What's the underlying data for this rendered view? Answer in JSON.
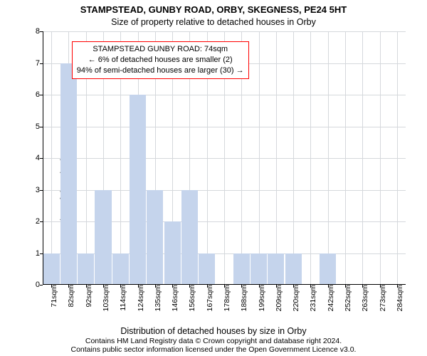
{
  "title": "STAMPSTEAD, GUNBY ROAD, ORBY, SKEGNESS, PE24 5HT",
  "subtitle": "Size of property relative to detached houses in Orby",
  "ylabel": "Number of detached properties",
  "xlabel": "Distribution of detached houses by size in Orby",
  "caption_line1": "Contains HM Land Registry data © Crown copyright and database right 2024.",
  "caption_line2": "Contains public sector information licensed under the Open Government Licence v3.0.",
  "info_box": {
    "line1": "STAMPSTEAD GUNBY ROAD: 74sqm",
    "line2": "← 6% of detached houses are smaller (2)",
    "line3": "94% of semi-detached houses are larger (30) →",
    "border_color": "#ff0000",
    "left_pct": 8,
    "top_pct": 4
  },
  "chart": {
    "type": "bar",
    "background_color": "#ffffff",
    "grid_color": "#d5d8dc",
    "axis_color": "#000000",
    "bar_color": "#c5d4ec",
    "bar_edge_color": "#c5d4ec",
    "bar_width_ratio": 0.95,
    "ylim": [
      0,
      8
    ],
    "ytick_step": 1,
    "label_fontsize": 12.5,
    "title_fontsize": 13,
    "tick_fontsize": 11,
    "xtick_fontsize": 10.5,
    "xtick_rotation": -90,
    "categories": [
      "71sqm",
      "82sqm",
      "92sqm",
      "103sqm",
      "114sqm",
      "124sqm",
      "135sqm",
      "146sqm",
      "156sqm",
      "167sqm",
      "178sqm",
      "188sqm",
      "199sqm",
      "209sqm",
      "220sqm",
      "231sqm",
      "242sqm",
      "252sqm",
      "263sqm",
      "273sqm",
      "284sqm"
    ],
    "values": [
      1,
      7,
      1,
      3,
      1,
      6,
      3,
      2,
      3,
      1,
      0,
      1,
      1,
      1,
      1,
      0,
      1,
      0,
      0,
      0,
      0
    ]
  }
}
